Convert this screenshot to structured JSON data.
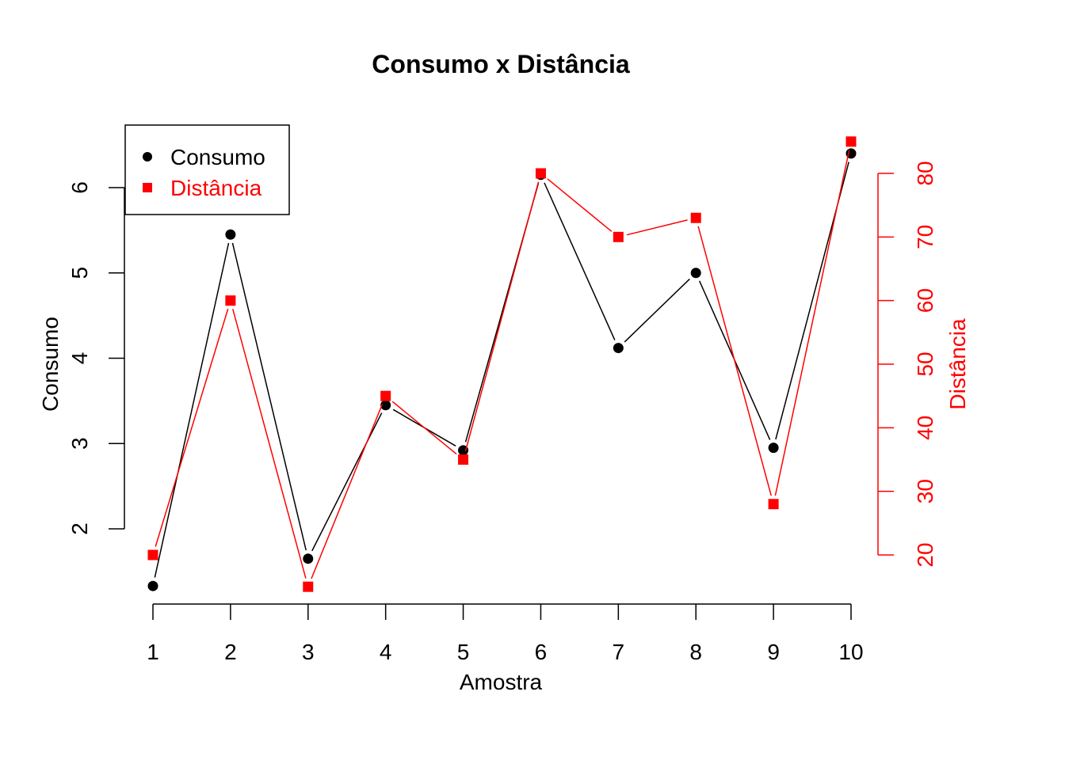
{
  "chart_data": {
    "type": "line",
    "title": "Consumo x Distância",
    "xlabel": "Amostra",
    "x": [
      1,
      2,
      3,
      4,
      5,
      6,
      7,
      8,
      9,
      10
    ],
    "x_ticks": [
      1,
      2,
      3,
      4,
      5,
      6,
      7,
      8,
      9,
      10
    ],
    "y_left": {
      "label": "Consumo",
      "color": "#000000",
      "ticks": [
        2,
        3,
        4,
        5,
        6
      ],
      "range": [
        1.3,
        6.6
      ]
    },
    "y_right": {
      "label": "Distância",
      "color": "#ff0000",
      "ticks": [
        20,
        30,
        40,
        50,
        60,
        70,
        80
      ],
      "range": [
        15,
        85
      ]
    },
    "series": [
      {
        "name": "Consumo",
        "axis": "left",
        "color": "#000000",
        "marker": "circle",
        "values": [
          1.33,
          5.45,
          1.65,
          3.45,
          2.92,
          6.15,
          4.12,
          5.0,
          2.95,
          6.4
        ]
      },
      {
        "name": "Distância",
        "axis": "right",
        "color": "#ff0000",
        "marker": "square",
        "values": [
          20,
          60,
          15,
          45,
          35,
          80,
          70,
          73,
          28,
          85
        ]
      }
    ],
    "legend": {
      "position": "top-left",
      "items": [
        {
          "label": "Consumo",
          "color": "#000000",
          "marker": "circle"
        },
        {
          "label": "Distância",
          "color": "#ff0000",
          "marker": "square"
        }
      ]
    },
    "grid": false
  }
}
